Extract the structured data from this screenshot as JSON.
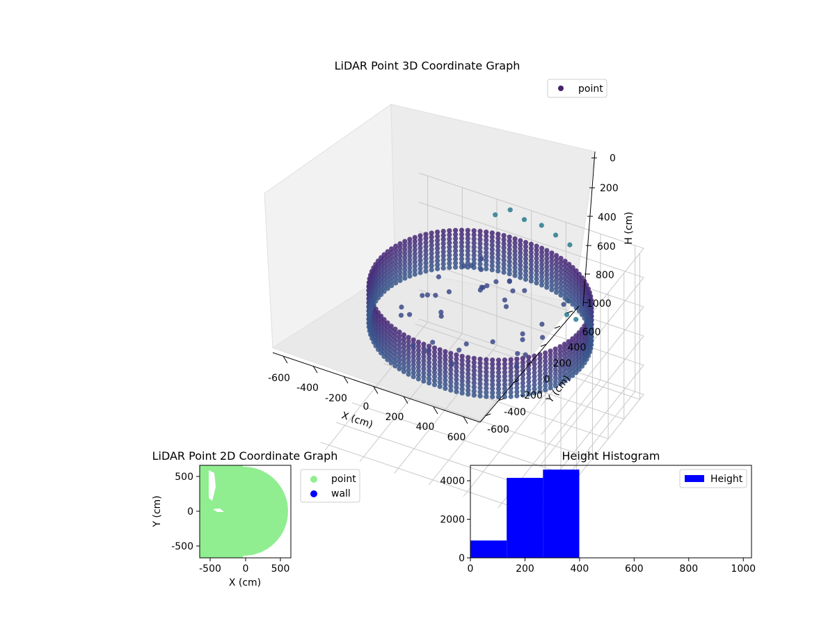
{
  "chart_data": [
    {
      "type": "scatter3d",
      "title": "LiDAR Point 3D Coordinate Graph",
      "xlabel": "X (cm)",
      "ylabel": "Y (cm)",
      "zlabel": "H (cm)",
      "xticks": [
        -600,
        -400,
        -200,
        0,
        200,
        400,
        600
      ],
      "yticks": [
        -600,
        -400,
        -200,
        0,
        200,
        400,
        600
      ],
      "zticks": [
        0,
        200,
        400,
        600,
        800,
        1000
      ],
      "xlim": [
        -650,
        650
      ],
      "ylim": [
        -650,
        650
      ],
      "zlim": [
        1000,
        0
      ],
      "legend": [
        "point"
      ],
      "legend_position": "top-right",
      "colormap": "viridis",
      "shape": {
        "description_values_cm": {
          "ring_radius": 590,
          "ring_height_min": 140,
          "ring_height_max": 400
        }
      }
    },
    {
      "type": "scatter",
      "title": "LiDAR Point 2D Coordinate Graph",
      "xlabel": "X (cm)",
      "ylabel": "Y (cm)",
      "xticks": [
        -500,
        0,
        500
      ],
      "yticks": [
        -500,
        0,
        500
      ],
      "xlim": [
        -660,
        640
      ],
      "ylim": [
        -660,
        660
      ],
      "series": [
        {
          "name": "point",
          "color": "#90ee90"
        },
        {
          "name": "wall",
          "color": "#0000ff"
        }
      ],
      "legend_position": "outside-right"
    },
    {
      "type": "bar",
      "title": "Height Histogram",
      "series": [
        {
          "name": "Height",
          "color": "#0000ff"
        }
      ],
      "bins": [
        [
          0,
          133,
          900
        ],
        [
          133,
          266,
          4150
        ],
        [
          266,
          399,
          4580
        ]
      ],
      "xticks": [
        0,
        200,
        400,
        600,
        800,
        1000
      ],
      "yticks": [
        0,
        2000,
        4000
      ],
      "xlim": [
        0,
        1030
      ],
      "ylim": [
        0,
        4800
      ],
      "legend_position": "top-right"
    }
  ]
}
